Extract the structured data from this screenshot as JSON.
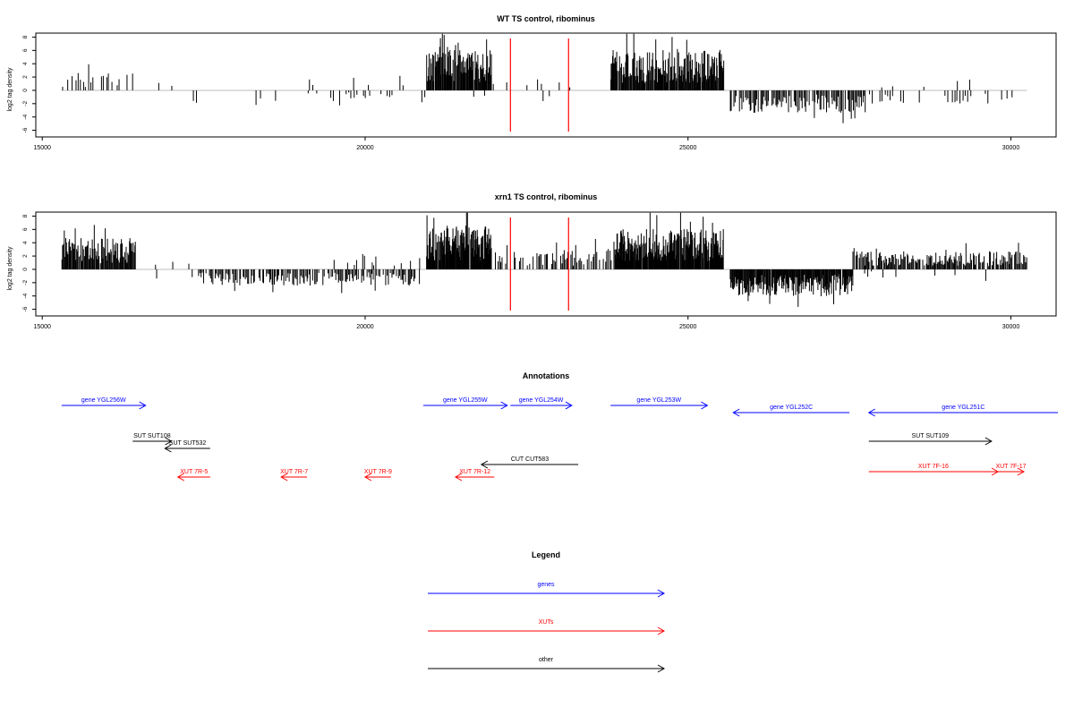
{
  "colors": {
    "black": "#000000",
    "red": "#ff0000",
    "blue": "#0000ff",
    "baseline": "#bdbdbd"
  },
  "panels": [
    {
      "title": "WT TS control, ribominus",
      "ylabel": "log2 tag density"
    },
    {
      "title": "xrn1 TS control, ribominus",
      "ylabel": "log2 tag density"
    }
  ],
  "annotations": {
    "title": "Annotations",
    "features": [
      {
        "label": "gene YGL256W",
        "start": 15300,
        "end": 16600,
        "color": "blue",
        "strand": "+",
        "row": 0
      },
      {
        "label": "gene YGL255W",
        "start": 20900,
        "end": 22200,
        "color": "blue",
        "strand": "+",
        "row": 0
      },
      {
        "label": "gene YGL254W",
        "start": 22250,
        "end": 23200,
        "color": "blue",
        "strand": "+",
        "row": 0
      },
      {
        "label": "gene YGL253W",
        "start": 23800,
        "end": 25300,
        "color": "blue",
        "strand": "+",
        "row": 0
      },
      {
        "label": "gene YGL252C",
        "start": 25700,
        "end": 27500,
        "color": "blue",
        "strand": "-",
        "row": 0.4
      },
      {
        "label": "gene YGL251C",
        "start": 27800,
        "end": 31000,
        "color": "blue",
        "strand": "-",
        "row": 0.4
      },
      {
        "label": "SUT SUT108",
        "start": 16400,
        "end": 17000,
        "color": "black",
        "strand": "+",
        "row": 2
      },
      {
        "label": "SUT SUT532",
        "start": 16900,
        "end": 17600,
        "color": "black",
        "strand": "-",
        "row": 2.4
      },
      {
        "label": "SUT SUT109",
        "start": 27800,
        "end": 29700,
        "color": "black",
        "strand": "+",
        "row": 2
      },
      {
        "label": "CUT CUT583",
        "start": 21800,
        "end": 23300,
        "color": "black",
        "strand": "-",
        "row": 3.3
      },
      {
        "label": "XUT 7R-5",
        "start": 17100,
        "end": 17600,
        "color": "red",
        "strand": "-",
        "row": 4
      },
      {
        "label": "XUT 7R-7",
        "start": 18700,
        "end": 19100,
        "color": "red",
        "strand": "-",
        "row": 4
      },
      {
        "label": "XUT 7R-9",
        "start": 20000,
        "end": 20400,
        "color": "red",
        "strand": "-",
        "row": 4
      },
      {
        "label": "XUT 7R-12",
        "start": 21400,
        "end": 22000,
        "color": "red",
        "strand": "-",
        "row": 4
      },
      {
        "label": "XUT 7F-16",
        "start": 27800,
        "end": 29800,
        "color": "red",
        "strand": "+",
        "row": 3.7
      },
      {
        "label": "XUT 7F-17",
        "start": 29800,
        "end": 30200,
        "color": "red",
        "strand": "+",
        "row": 3.7
      }
    ]
  },
  "legend": {
    "title": "Legend",
    "items": [
      {
        "label": "genes",
        "color": "blue"
      },
      {
        "label": "XUTs",
        "color": "red"
      },
      {
        "label": "other",
        "color": "black"
      }
    ]
  },
  "chart_data": [
    {
      "type": "bar",
      "title": "WT TS control, ribominus",
      "xlabel": "",
      "ylabel": "log2 tag density",
      "xlim": [
        14900,
        30700
      ],
      "ylim": [
        -7,
        8.6
      ],
      "xticks": [
        15000,
        20000,
        25000,
        30000
      ],
      "yticks": [
        -6,
        -4,
        -2,
        0,
        2,
        4,
        6,
        8
      ],
      "markers": [
        22250,
        23150
      ],
      "regions": [
        {
          "start": 15300,
          "end": 16450,
          "value": 2.0,
          "step": 40,
          "density": 0.75
        },
        {
          "start": 16800,
          "end": 17300,
          "value": 1.2,
          "step": 60,
          "density": 0.15
        },
        {
          "start": 17200,
          "end": 17600,
          "value": -1.5,
          "step": 60,
          "density": 0.3
        },
        {
          "start": 18300,
          "end": 19100,
          "value": -1.5,
          "step": 50,
          "density": 0.3
        },
        {
          "start": 19100,
          "end": 20900,
          "value": -1.2,
          "step": 45,
          "density": 0.4
        },
        {
          "start": 19100,
          "end": 20800,
          "value": 1.8,
          "step": 70,
          "density": 0.25
        },
        {
          "start": 20950,
          "end": 21950,
          "value": 4.5,
          "step": 10,
          "density": 0.95
        },
        {
          "start": 21950,
          "end": 22200,
          "value": 1.5,
          "step": 30,
          "density": 0.4
        },
        {
          "start": 21600,
          "end": 22000,
          "value": -1.0,
          "step": 60,
          "density": 0.3
        },
        {
          "start": 22300,
          "end": 23300,
          "value": 1.2,
          "step": 50,
          "density": 0.25
        },
        {
          "start": 22600,
          "end": 22900,
          "value": -1.5,
          "step": 60,
          "density": 0.3
        },
        {
          "start": 23800,
          "end": 25550,
          "value": 4.5,
          "step": 10,
          "density": 0.95
        },
        {
          "start": 25650,
          "end": 27750,
          "value": -2.5,
          "step": 18,
          "density": 0.85
        },
        {
          "start": 27800,
          "end": 30000,
          "value": -1.5,
          "step": 40,
          "density": 0.5
        },
        {
          "start": 27800,
          "end": 29600,
          "value": 1.2,
          "step": 90,
          "density": 0.25
        }
      ]
    },
    {
      "type": "bar",
      "title": "xrn1 TS control, ribominus",
      "xlabel": "",
      "ylabel": "log2 tag density",
      "xlim": [
        14900,
        30700
      ],
      "ylim": [
        -7,
        8.6
      ],
      "xticks": [
        15000,
        20000,
        25000,
        30000
      ],
      "yticks": [
        -6,
        -4,
        -2,
        0,
        2,
        4,
        6,
        8
      ],
      "markers": [
        22250,
        23150
      ],
      "regions": [
        {
          "start": 15300,
          "end": 16450,
          "value": 3.5,
          "step": 12,
          "density": 0.95
        },
        {
          "start": 16600,
          "end": 17300,
          "value": 1.0,
          "step": 60,
          "density": 0.35
        },
        {
          "start": 16700,
          "end": 17400,
          "value": -1.5,
          "step": 60,
          "density": 0.3
        },
        {
          "start": 17400,
          "end": 20850,
          "value": -1.8,
          "step": 18,
          "density": 0.8
        },
        {
          "start": 19500,
          "end": 20850,
          "value": 1.6,
          "step": 35,
          "density": 0.45
        },
        {
          "start": 20950,
          "end": 21950,
          "value": 5.0,
          "step": 8,
          "density": 0.97
        },
        {
          "start": 21950,
          "end": 22200,
          "value": 2.0,
          "step": 20,
          "density": 0.6
        },
        {
          "start": 22300,
          "end": 23300,
          "value": 2.0,
          "step": 20,
          "density": 0.7
        },
        {
          "start": 23300,
          "end": 23800,
          "value": 2.5,
          "step": 20,
          "density": 0.7
        },
        {
          "start": 23850,
          "end": 25550,
          "value": 4.5,
          "step": 8,
          "density": 0.97
        },
        {
          "start": 25650,
          "end": 27550,
          "value": -3.0,
          "step": 10,
          "density": 0.97
        },
        {
          "start": 27550,
          "end": 30250,
          "value": 2.0,
          "step": 14,
          "density": 0.85
        },
        {
          "start": 27700,
          "end": 30000,
          "value": -1.0,
          "step": 70,
          "density": 0.3
        }
      ]
    }
  ]
}
